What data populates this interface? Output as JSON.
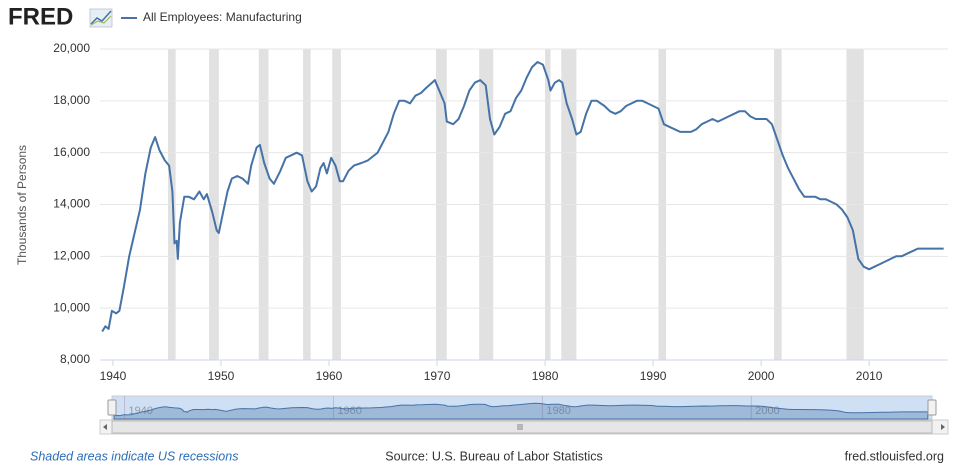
{
  "header": {
    "logo": "FRED"
  },
  "chart_data": {
    "type": "line",
    "ylabel": "Thousands of Persons",
    "x": [
      1939.0,
      1939.3,
      1939.6,
      1939.9,
      1940.3,
      1940.6,
      1941,
      1941.5,
      1942,
      1942.5,
      1943,
      1943.5,
      1943.9,
      1944.3,
      1944.8,
      1945.2,
      1945.5,
      1945.7,
      1945.9,
      1946.0,
      1946.2,
      1946.6,
      1947,
      1947.5,
      1948,
      1948.4,
      1948.7,
      1949.2,
      1949.6,
      1949.8,
      1950.2,
      1950.6,
      1951,
      1951.5,
      1952,
      1952.5,
      1952.8,
      1953.3,
      1953.6,
      1954,
      1954.5,
      1954.9,
      1955.5,
      1956,
      1956.5,
      1957,
      1957.5,
      1958,
      1958.4,
      1958.8,
      1959.2,
      1959.5,
      1959.8,
      1960.2,
      1960.6,
      1961.0,
      1961.3,
      1961.8,
      1962.3,
      1963,
      1963.6,
      1964.5,
      1965,
      1965.5,
      1966,
      1966.5,
      1967,
      1967.5,
      1968,
      1968.5,
      1969,
      1969.8,
      1970.3,
      1970.7,
      1970.9,
      1971.5,
      1972,
      1972.5,
      1973,
      1973.5,
      1974,
      1974.5,
      1974.9,
      1975.3,
      1975.8,
      1976.3,
      1976.8,
      1977.3,
      1977.8,
      1978.3,
      1978.8,
      1979.3,
      1979.8,
      1980.3,
      1980.5,
      1980.9,
      1981.3,
      1981.6,
      1982,
      1982.5,
      1982.9,
      1983.3,
      1983.8,
      1984.3,
      1984.8,
      1985.5,
      1986,
      1986.5,
      1987,
      1987.5,
      1988,
      1988.5,
      1989,
      1989.5,
      1990,
      1990.5,
      1991,
      1991.5,
      1992,
      1992.5,
      1993,
      1993.5,
      1994,
      1994.5,
      1995,
      1995.5,
      1996,
      1996.5,
      1997,
      1997.5,
      1998,
      1998.5,
      1999,
      1999.5,
      2000,
      2000.5,
      2001,
      2001.5,
      2002,
      2002.5,
      2003,
      2003.5,
      2004,
      2004.5,
      2005,
      2005.5,
      2006,
      2006.5,
      2007,
      2007.5,
      2008,
      2008.5,
      2009,
      2009.5,
      2010,
      2010.5,
      2011,
      2011.5,
      2012,
      2012.5,
      2013,
      2013.5,
      2014,
      2014.5,
      2015,
      2015.5,
      2016,
      2016.5,
      2016.9
    ],
    "series": [
      {
        "name": "All Employees: Manufacturing",
        "color": "#4572a7",
        "values": [
          9100,
          9300,
          9200,
          9900,
          9800,
          9900,
          10800,
          12000,
          12900,
          13800,
          15200,
          16200,
          16600,
          16100,
          15700,
          15500,
          14500,
          12500,
          12600,
          11900,
          13300,
          14300,
          14300,
          14200,
          14500,
          14200,
          14400,
          13700,
          13000,
          12900,
          13700,
          14500,
          15000,
          15100,
          15000,
          14800,
          15500,
          16200,
          16300,
          15600,
          15000,
          14800,
          15300,
          15800,
          15900,
          16000,
          15900,
          14900,
          14500,
          14700,
          15400,
          15600,
          15200,
          15800,
          15500,
          14900,
          14900,
          15300,
          15500,
          15600,
          15700,
          16000,
          16400,
          16800,
          17500,
          18000,
          18000,
          17900,
          18200,
          18300,
          18500,
          18800,
          18300,
          17900,
          17200,
          17100,
          17300,
          17800,
          18400,
          18700,
          18800,
          18600,
          17300,
          16700,
          17000,
          17500,
          17600,
          18100,
          18400,
          18900,
          19300,
          19500,
          19400,
          18800,
          18400,
          18700,
          18800,
          18700,
          17900,
          17300,
          16700,
          16800,
          17500,
          18000,
          18000,
          17800,
          17600,
          17500,
          17600,
          17800,
          17900,
          18000,
          18000,
          17900,
          17800,
          17700,
          17100,
          17000,
          16900,
          16800,
          16800,
          16800,
          16900,
          17100,
          17200,
          17300,
          17200,
          17300,
          17400,
          17500,
          17600,
          17600,
          17400,
          17300,
          17300,
          17300,
          17100,
          16500,
          15900,
          15400,
          15000,
          14600,
          14300,
          14300,
          14300,
          14200,
          14200,
          14100,
          14000,
          13800,
          13500,
          13000,
          11900,
          11600,
          11500,
          11600,
          11700,
          11800,
          11900,
          12000,
          12000,
          12100,
          12200,
          12300,
          12300,
          12300,
          12300,
          12300,
          12300
        ]
      }
    ],
    "recessions": [
      [
        1945.1,
        1945.8
      ],
      [
        1948.9,
        1949.8
      ],
      [
        1953.5,
        1954.4
      ],
      [
        1957.6,
        1958.3
      ],
      [
        1960.3,
        1961.1
      ],
      [
        1969.9,
        1970.9
      ],
      [
        1973.9,
        1975.2
      ],
      [
        1980.0,
        1980.5
      ],
      [
        1981.5,
        1982.9
      ],
      [
        1990.5,
        1991.2
      ],
      [
        2001.2,
        2001.9
      ],
      [
        2007.9,
        2009.5
      ]
    ],
    "xlim": [
      1938.8,
      2017.3
    ],
    "xticks": [
      1940,
      1950,
      1960,
      1970,
      1980,
      1990,
      2000,
      2010
    ],
    "ylim": [
      8000,
      20000
    ],
    "yticks": [
      {
        "value": 8000,
        "label": "8,000"
      },
      {
        "value": 10000,
        "label": "10,000"
      },
      {
        "value": 12000,
        "label": "12,000"
      },
      {
        "value": 14000,
        "label": "14,000"
      },
      {
        "value": 16000,
        "label": "16,000"
      },
      {
        "value": 18000,
        "label": "18,000"
      },
      {
        "value": 20000,
        "label": "20,000"
      }
    ],
    "navigator_ticks": [
      1940,
      1960,
      1980,
      2000
    ],
    "grid": true
  },
  "footer": {
    "note": "Shaded areas indicate US recessions",
    "source": "Source: U.S. Bureau of Labor Statistics",
    "site": "fred.stlouisfed.org"
  }
}
